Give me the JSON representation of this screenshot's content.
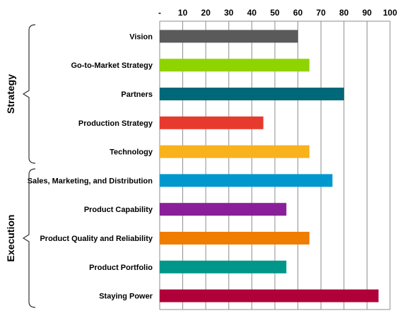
{
  "chart_data": {
    "type": "bar",
    "orientation": "horizontal",
    "xlim": [
      0,
      100
    ],
    "x_ticks": [
      {
        "value": 0,
        "label": "-"
      },
      {
        "value": 10,
        "label": "10"
      },
      {
        "value": 20,
        "label": "20"
      },
      {
        "value": 30,
        "label": "30"
      },
      {
        "value": 40,
        "label": "40"
      },
      {
        "value": 50,
        "label": "50"
      },
      {
        "value": 60,
        "label": "60"
      },
      {
        "value": 70,
        "label": "70"
      },
      {
        "value": 80,
        "label": "80"
      },
      {
        "value": 90,
        "label": "90"
      },
      {
        "value": 100,
        "label": "100"
      }
    ],
    "x_axis_position": "top",
    "grid": true,
    "categories": [
      "Vision",
      "Go-to-Market Strategy",
      "Partners",
      "Production Strategy",
      "Technology",
      "Sales, Marketing, and Distribution",
      "Product Capability",
      "Product Quality and Reliability",
      "Product Portfolio",
      "Staying Power"
    ],
    "values": [
      60,
      65,
      80,
      45,
      65,
      75,
      55,
      65,
      55,
      95
    ],
    "colors": [
      "#5a5a5a",
      "#8fd400",
      "#006878",
      "#e63a2e",
      "#f8b21c",
      "#0097cf",
      "#8a1f9a",
      "#ef7d00",
      "#00968a",
      "#b0003a"
    ],
    "groups": [
      {
        "label": "Strategy",
        "start": 0,
        "end": 4
      },
      {
        "label": "Execution",
        "start": 5,
        "end": 9
      }
    ]
  }
}
